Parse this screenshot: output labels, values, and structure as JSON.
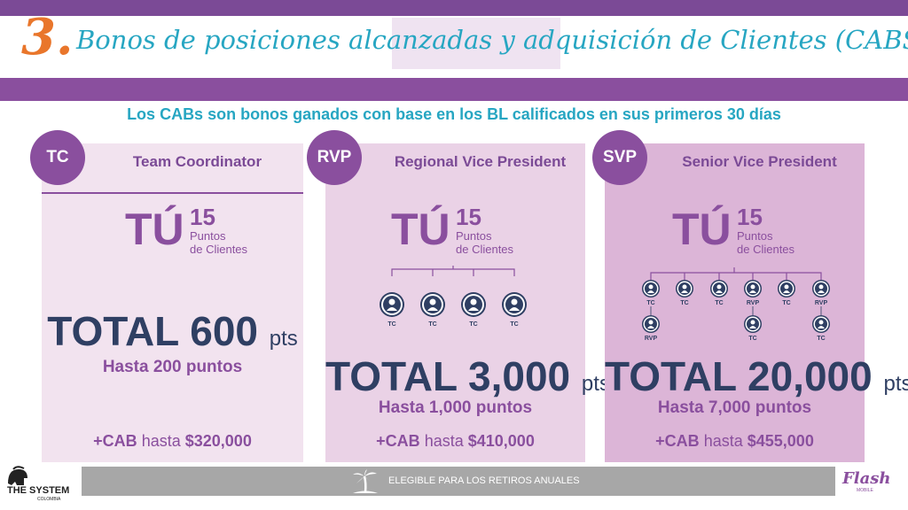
{
  "header": {
    "number": "3.",
    "title": "Bonos de posiciones alcanzadas y adquisición de Clientes (CABS)"
  },
  "subtitle": "Los CABs son bonos ganados con base en los BL calificados en sus primeros 30 días",
  "cards": [
    {
      "badge": "TC",
      "title": "Team Coordinator",
      "tu": "TÚ",
      "points": "15",
      "points_label_1": "Puntos",
      "points_label_2": "de Clientes",
      "total_label": "TOTAL",
      "total_value": "600",
      "total_unit": "pts",
      "hasta": "Hasta 200 puntos",
      "cab_prefix": "+CAB",
      "cab_mid": "hasta",
      "cab_amount": "$320,000"
    },
    {
      "badge": "RVP",
      "title": "Regional Vice President",
      "tu": "TÚ",
      "points": "15",
      "points_label_1": "Puntos",
      "points_label_2": "de Clientes",
      "total_label": "TOTAL",
      "total_value": "3,000",
      "total_unit": "pts",
      "hasta": "Hasta 1,000 puntos",
      "cab_prefix": "+CAB",
      "cab_mid": "hasta",
      "cab_amount": "$410,000",
      "tree_labels": [
        "TC",
        "TC",
        "TC",
        "TC"
      ]
    },
    {
      "badge": "SVP",
      "title": "Senior Vice President",
      "tu": "TÚ",
      "points": "15",
      "points_label_1": "Puntos",
      "points_label_2": "de Clientes",
      "total_label": "TOTAL",
      "total_value": "20,000",
      "total_unit": "pts",
      "hasta": "Hasta 7,000 puntos",
      "cab_prefix": "+CAB",
      "cab_mid": "hasta",
      "cab_amount": "$455,000",
      "tree_labels": [
        "TC",
        "TC",
        "TC",
        "RVP",
        "TC",
        "RVP"
      ],
      "tree_sub_labels": [
        "RVP",
        "TC",
        "TC"
      ]
    }
  ],
  "footer": {
    "retiros": "ELEGIBLE PARA LOS RETIROS ANUALES",
    "logo_left": "THE SYSTEM",
    "logo_left_sub": "COLOMBIA",
    "logo_right": "Flash",
    "logo_right_sub": "MOBILE"
  },
  "colors": {
    "purple": "#8a4f9e",
    "navy": "#2f3f63",
    "teal": "#27a6c2",
    "orange": "#e9762b",
    "gray": "#a7a7a7"
  },
  "icons": [
    "person-icon",
    "palm-tree-icon",
    "helmet-logo-icon"
  ]
}
